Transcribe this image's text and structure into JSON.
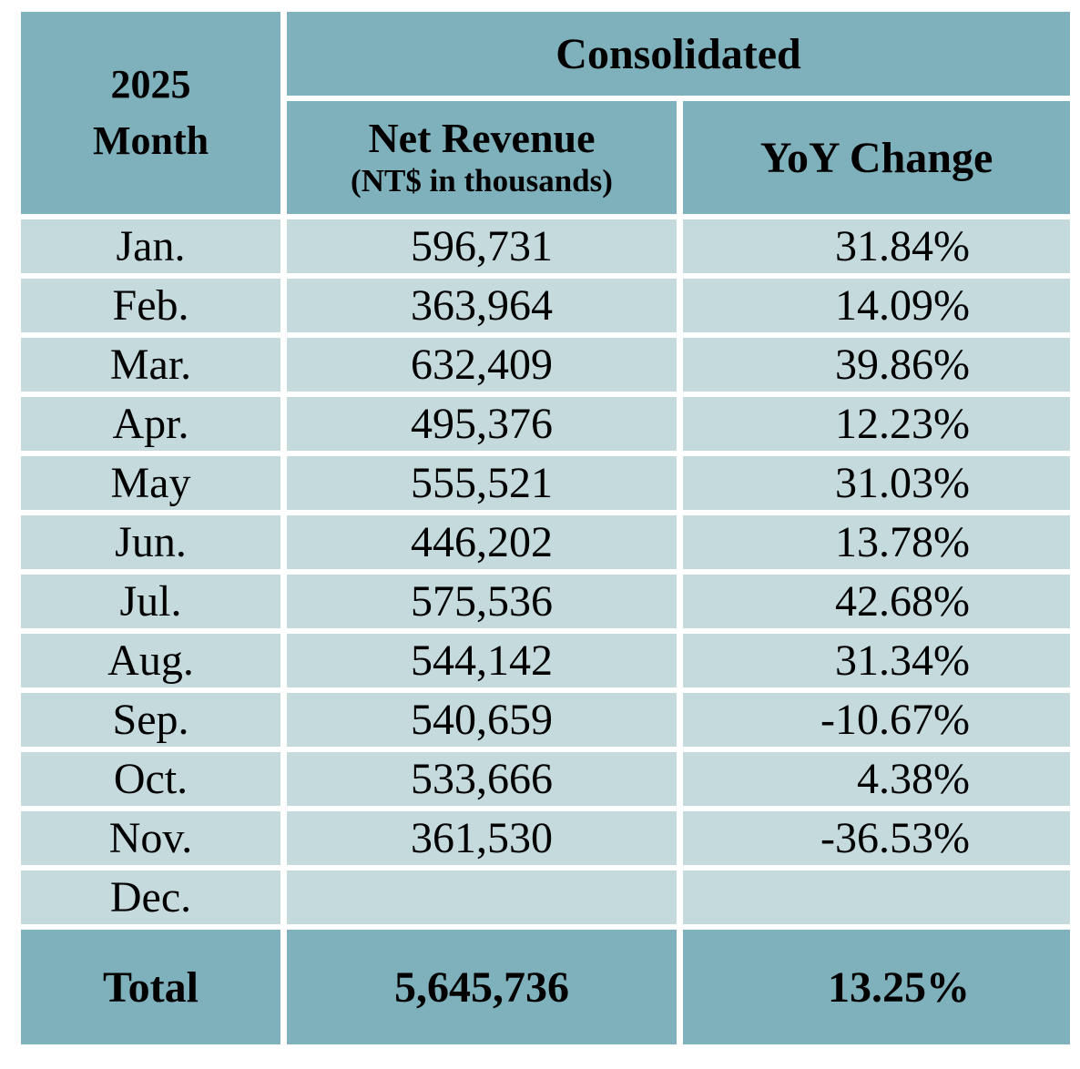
{
  "table": {
    "month_header": {
      "line1": "2025",
      "line2": "Month"
    },
    "group_header": "Consolidated",
    "net_revenue_header": "Net Revenue",
    "net_revenue_subheader": "(NT$ in thousands)",
    "yoy_header": "YoY Change",
    "rows": [
      {
        "month": "Jan.",
        "net_revenue": "596,731",
        "yoy": "31.84%"
      },
      {
        "month": "Feb.",
        "net_revenue": "363,964",
        "yoy": "14.09%"
      },
      {
        "month": "Mar.",
        "net_revenue": "632,409",
        "yoy": "39.86%"
      },
      {
        "month": "Apr.",
        "net_revenue": "495,376",
        "yoy": "12.23%"
      },
      {
        "month": "May",
        "net_revenue": "555,521",
        "yoy": "31.03%"
      },
      {
        "month": "Jun.",
        "net_revenue": "446,202",
        "yoy": "13.78%"
      },
      {
        "month": "Jul.",
        "net_revenue": "575,536",
        "yoy": "42.68%"
      },
      {
        "month": "Aug.",
        "net_revenue": "544,142",
        "yoy": "31.34%"
      },
      {
        "month": "Sep.",
        "net_revenue": "540,659",
        "yoy": "-10.67%"
      },
      {
        "month": "Oct.",
        "net_revenue": "533,666",
        "yoy": "4.38%"
      },
      {
        "month": "Nov.",
        "net_revenue": "361,530",
        "yoy": "-36.53%"
      },
      {
        "month": "Dec.",
        "net_revenue": "",
        "yoy": ""
      }
    ],
    "total": {
      "label": "Total",
      "net_revenue": "5,645,736",
      "yoy": "13.25%"
    }
  },
  "colors": {
    "header_bg": "#7fb1bd",
    "row_bg": "#c4dadd",
    "background": "#ffffff",
    "text": "#000000"
  },
  "chart_data": {
    "type": "table",
    "title": "2025 Month — Consolidated",
    "columns": [
      "Month",
      "Net Revenue (NT$ in thousands)",
      "YoY Change (%)"
    ],
    "categories": [
      "Jan.",
      "Feb.",
      "Mar.",
      "Apr.",
      "May",
      "Jun.",
      "Jul.",
      "Aug.",
      "Sep.",
      "Oct.",
      "Nov.",
      "Dec."
    ],
    "series": [
      {
        "name": "Net Revenue (NT$ in thousands)",
        "values": [
          596731,
          363964,
          632409,
          495376,
          555521,
          446202,
          575536,
          544142,
          540659,
          533666,
          361530,
          null
        ]
      },
      {
        "name": "YoY Change (%)",
        "values": [
          31.84,
          14.09,
          39.86,
          12.23,
          31.03,
          13.78,
          42.68,
          31.34,
          -10.67,
          4.38,
          -36.53,
          null
        ]
      }
    ],
    "total": {
      "net_revenue": 5645736,
      "yoy_change_pct": 13.25
    }
  }
}
